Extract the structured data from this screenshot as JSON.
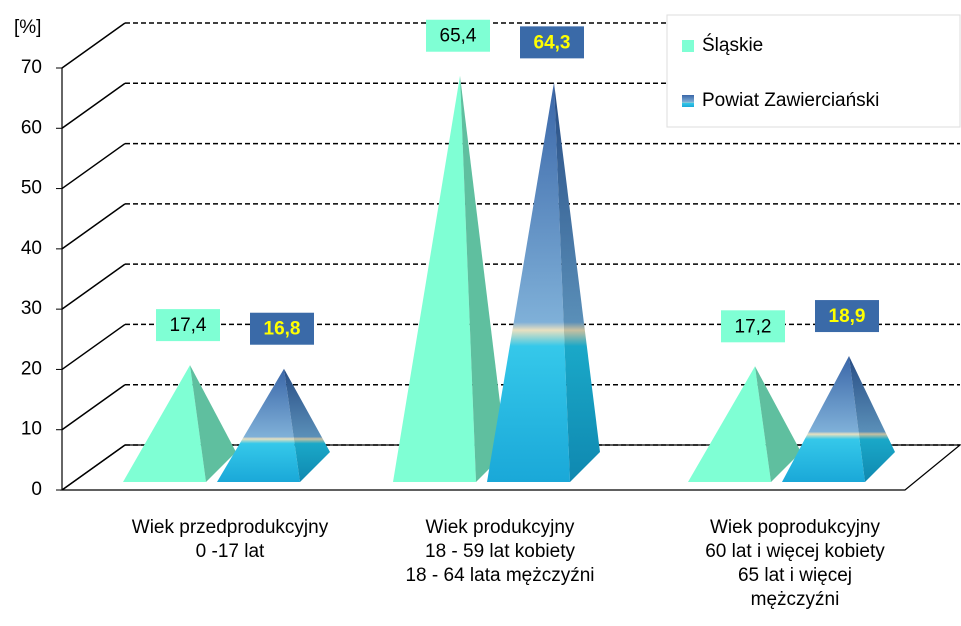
{
  "chart_data": {
    "type": "pyramid",
    "y_label": "[%]",
    "categories": [
      "Wiek przedprodukcyjny\n0 -17 lat",
      "Wiek produkcyjny\n18 - 59 lat kobiety\n18 - 64 lata mężczyźni",
      "Wiek poprodukcyjny\n60 lat i więcej kobiety\n65 lat i więcej\nmężczyźni"
    ],
    "series": [
      {
        "name": "Śląskie",
        "color": "#7fffd4",
        "values": [
          17.4,
          65.4,
          17.2
        ],
        "value_labels": [
          "17,4",
          "65,4",
          "17,2"
        ]
      },
      {
        "name": "Powiat Zawierciański",
        "color": "#3a7fc0",
        "values": [
          16.8,
          64.3,
          18.9
        ],
        "value_labels": [
          "16,8",
          "64,3",
          "18,9"
        ]
      }
    ],
    "ylim": [
      0,
      70
    ],
    "yticks": [
      0,
      10,
      20,
      30,
      40,
      50,
      60,
      70
    ],
    "grid": true,
    "legend": "upper right"
  }
}
